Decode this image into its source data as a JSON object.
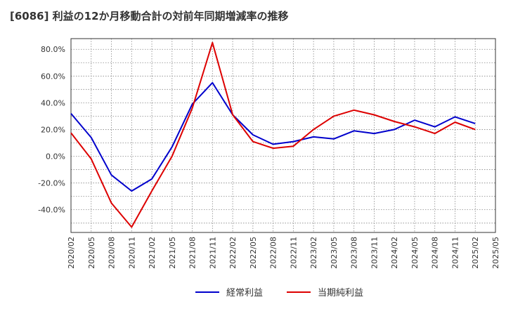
{
  "title": "[6086]  利益の12か月移動合計の対前年同期増減率の推移",
  "chart_data": {
    "type": "line",
    "title": "[6086]  利益の12か月移動合計の対前年同期増減率の推移",
    "xlabel": "",
    "ylabel": "",
    "x": [
      "2020/02",
      "2020/05",
      "2020/08",
      "2020/11",
      "2021/02",
      "2021/05",
      "2021/08",
      "2021/11",
      "2022/02",
      "2022/05",
      "2022/08",
      "2022/11",
      "2023/02",
      "2023/05",
      "2023/08",
      "2023/11",
      "2024/02",
      "2024/05",
      "2024/08",
      "2024/11",
      "2025/02",
      "2025/05"
    ],
    "y_ticks": [
      80,
      60,
      40,
      20,
      0,
      -20,
      -40
    ],
    "y_tick_labels": [
      "80.0%",
      "60.0%",
      "40.0%",
      "20.0%",
      "0.0%",
      "-20.0%",
      "-40.0%"
    ],
    "ylim": [
      -57,
      88
    ],
    "grid": true,
    "legend_position": "bottom-center",
    "series": [
      {
        "name": "経常利益",
        "color": "#0000cc",
        "points": [
          [
            "2020/02",
            32
          ],
          [
            "2020/05",
            14
          ],
          [
            "2020/08",
            -14
          ],
          [
            "2020/11",
            -26
          ],
          [
            "2021/02",
            -17
          ],
          [
            "2021/05",
            7
          ],
          [
            "2021/08",
            39
          ],
          [
            "2021/11",
            55
          ],
          [
            "2022/02",
            31
          ],
          [
            "2022/05",
            16
          ],
          [
            "2022/08",
            9
          ],
          [
            "2022/11",
            11
          ],
          [
            "2023/02",
            14.5
          ],
          [
            "2023/05",
            13
          ],
          [
            "2023/08",
            19
          ],
          [
            "2023/11",
            17
          ],
          [
            "2024/02",
            20
          ],
          [
            "2024/05",
            27
          ],
          [
            "2024/08",
            22
          ],
          [
            "2024/11",
            29.5
          ],
          [
            "2025/02",
            24.5
          ]
        ]
      },
      {
        "name": "当期純利益",
        "color": "#dd0000",
        "points": [
          [
            "2020/02",
            17.5
          ],
          [
            "2020/05",
            -2
          ],
          [
            "2020/08",
            -35
          ],
          [
            "2020/11",
            -53
          ],
          [
            "2021/02",
            -26
          ],
          [
            "2021/05",
            0
          ],
          [
            "2021/08",
            36
          ],
          [
            "2021/11",
            85
          ],
          [
            "2022/02",
            31
          ],
          [
            "2022/05",
            11
          ],
          [
            "2022/08",
            6
          ],
          [
            "2022/11",
            7.5
          ],
          [
            "2023/02",
            20
          ],
          [
            "2023/05",
            30
          ],
          [
            "2023/08",
            34.5
          ],
          [
            "2023/11",
            31
          ],
          [
            "2024/02",
            26
          ],
          [
            "2024/05",
            22
          ],
          [
            "2024/08",
            17
          ],
          [
            "2024/11",
            25.5
          ],
          [
            "2025/02",
            20
          ]
        ]
      }
    ]
  }
}
